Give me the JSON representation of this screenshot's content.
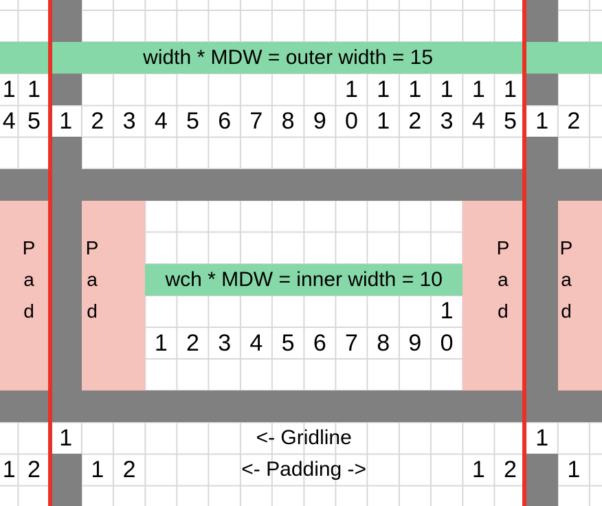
{
  "diagram": {
    "outer_banner": "width * MDW = outer width = 15",
    "inner_banner": "wch * MDW = inner width = 10",
    "gridline_label": "<- Gridline",
    "padding_label": "<- Padding ->",
    "pad_letters": [
      "P",
      "a",
      "d"
    ]
  },
  "colors": {
    "green": "#87d8a8",
    "pink": "#f5c2bc",
    "gray": "#808080",
    "red": "#e83227",
    "gridline": "#d8d8d8",
    "text": "#000000",
    "white": "#ffffff"
  },
  "cells": [
    {
      "r": 3,
      "c": 0,
      "t": "1"
    },
    {
      "r": 3,
      "c": 1,
      "t": "1"
    },
    {
      "r": 3,
      "c": 11,
      "t": "1"
    },
    {
      "r": 3,
      "c": 12,
      "t": "1"
    },
    {
      "r": 3,
      "c": 13,
      "t": "1"
    },
    {
      "r": 3,
      "c": 14,
      "t": "1"
    },
    {
      "r": 3,
      "c": 15,
      "t": "1"
    },
    {
      "r": 3,
      "c": 16,
      "t": "1"
    },
    {
      "r": 4,
      "c": 0,
      "t": "4"
    },
    {
      "r": 4,
      "c": 1,
      "t": "5"
    },
    {
      "r": 4,
      "c": 2,
      "t": "1"
    },
    {
      "r": 4,
      "c": 3,
      "t": "2"
    },
    {
      "r": 4,
      "c": 4,
      "t": "3"
    },
    {
      "r": 4,
      "c": 5,
      "t": "4"
    },
    {
      "r": 4,
      "c": 6,
      "t": "5"
    },
    {
      "r": 4,
      "c": 7,
      "t": "6"
    },
    {
      "r": 4,
      "c": 8,
      "t": "7"
    },
    {
      "r": 4,
      "c": 9,
      "t": "8"
    },
    {
      "r": 4,
      "c": 10,
      "t": "9"
    },
    {
      "r": 4,
      "c": 11,
      "t": "0"
    },
    {
      "r": 4,
      "c": 12,
      "t": "1"
    },
    {
      "r": 4,
      "c": 13,
      "t": "2"
    },
    {
      "r": 4,
      "c": 14,
      "t": "3"
    },
    {
      "r": 4,
      "c": 15,
      "t": "4"
    },
    {
      "r": 4,
      "c": 16,
      "t": "5"
    },
    {
      "r": 4,
      "c": 17,
      "t": "1"
    },
    {
      "r": 4,
      "c": 18,
      "t": "2"
    },
    {
      "r": 10,
      "c": 14,
      "t": "1"
    },
    {
      "r": 11,
      "c": 5,
      "t": "1"
    },
    {
      "r": 11,
      "c": 6,
      "t": "2"
    },
    {
      "r": 11,
      "c": 7,
      "t": "3"
    },
    {
      "r": 11,
      "c": 8,
      "t": "4"
    },
    {
      "r": 11,
      "c": 9,
      "t": "5"
    },
    {
      "r": 11,
      "c": 10,
      "t": "6"
    },
    {
      "r": 11,
      "c": 11,
      "t": "7"
    },
    {
      "r": 11,
      "c": 12,
      "t": "8"
    },
    {
      "r": 11,
      "c": 13,
      "t": "9"
    },
    {
      "r": 11,
      "c": 14,
      "t": "0"
    },
    {
      "r": 14,
      "c": 2,
      "t": "1"
    },
    {
      "r": 14,
      "c": 17,
      "t": "1"
    },
    {
      "r": 15,
      "c": 0,
      "t": "1"
    },
    {
      "r": 15,
      "c": 1,
      "t": "2"
    },
    {
      "r": 15,
      "c": 3,
      "t": "1"
    },
    {
      "r": 15,
      "c": 4,
      "t": "2"
    },
    {
      "r": 15,
      "c": 15,
      "t": "1"
    },
    {
      "r": 15,
      "c": 16,
      "t": "2"
    },
    {
      "r": 15,
      "c": 18,
      "t": "1"
    }
  ]
}
